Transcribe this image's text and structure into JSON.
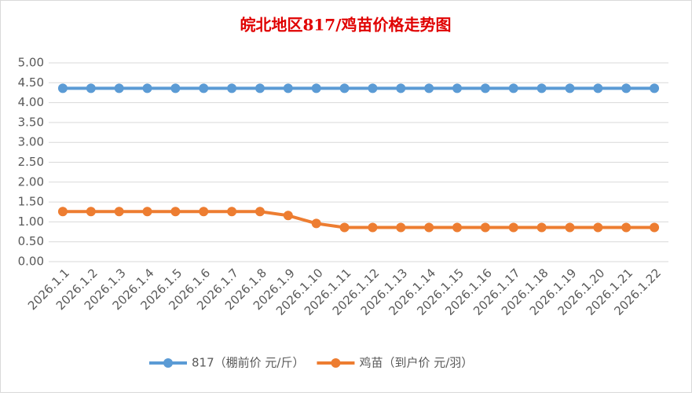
{
  "chart_data": {
    "type": "line",
    "title": "皖北地区817/鸡苗价格走势图",
    "categories": [
      "2026.1.1",
      "2026.1.2",
      "2026.1.3",
      "2026.1.4",
      "2026.1.5",
      "2026.1.6",
      "2026.1.7",
      "2026.1.8",
      "2026.1.9",
      "2026.1.10",
      "2026.1.11",
      "2026.1.12",
      "2026.1.13",
      "2026.1.14",
      "2026.1.15",
      "2026.1.16",
      "2026.1.17",
      "2026.1.18",
      "2026.1.19",
      "2026.1.20",
      "2026.1.21",
      "2026.1.22"
    ],
    "series": [
      {
        "name": "817（棚前价 元/斤）",
        "color": "#5b9bd5",
        "values": [
          4.36,
          4.36,
          4.36,
          4.36,
          4.36,
          4.36,
          4.36,
          4.36,
          4.36,
          4.36,
          4.36,
          4.36,
          4.36,
          4.36,
          4.36,
          4.36,
          4.36,
          4.36,
          4.36,
          4.36,
          4.36,
          4.36
        ]
      },
      {
        "name": "鸡苗（到户价 元/羽）",
        "color": "#ed7d31",
        "values": [
          1.26,
          1.26,
          1.26,
          1.26,
          1.26,
          1.26,
          1.26,
          1.26,
          1.16,
          0.96,
          0.86,
          0.86,
          0.86,
          0.86,
          0.86,
          0.86,
          0.86,
          0.86,
          0.86,
          0.86,
          0.86,
          0.86
        ]
      }
    ],
    "ylim": [
      0,
      5
    ],
    "yticks": [
      {
        "value": 0,
        "label": "0.00"
      },
      {
        "value": 0.5,
        "label": "0.50"
      },
      {
        "value": 1,
        "label": "1.00"
      },
      {
        "value": 1.5,
        "label": "1.50"
      },
      {
        "value": 2,
        "label": "2.00"
      },
      {
        "value": 2.5,
        "label": "2.50"
      },
      {
        "value": 3,
        "label": "3.00"
      },
      {
        "value": 3.5,
        "label": "3.50"
      },
      {
        "value": 4,
        "label": "4.00"
      },
      {
        "value": 4.5,
        "label": "4.50"
      },
      {
        "value": 5,
        "label": "5.00"
      }
    ],
    "grid": true,
    "legend": "bottom"
  }
}
